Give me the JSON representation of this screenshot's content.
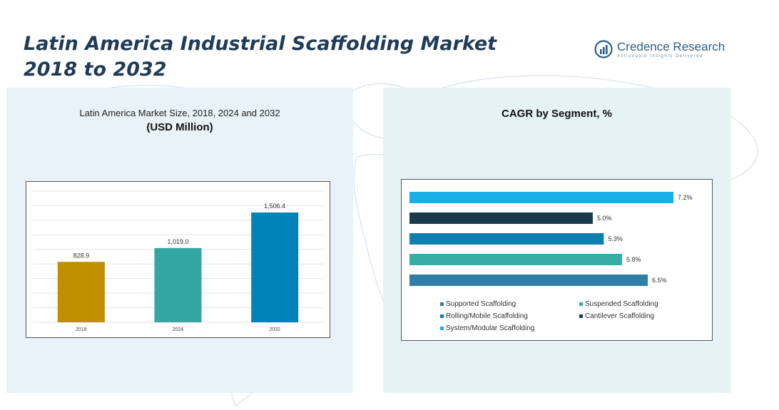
{
  "header": {
    "title_line1": "Latin America Industrial Scaffolding Market",
    "title_line2": "2018 to 2032"
  },
  "logo": {
    "name": "Credence Research",
    "tagline": "Actionable Insights Delivered",
    "icon": "credence-research-logo-icon"
  },
  "left_panel": {
    "title": "Latin America Market Size, 2018, 2024 and 2032",
    "unit": "(USD Million)"
  },
  "right_panel": {
    "title": "CAGR by Segment, %"
  },
  "colors": {
    "title": "#1f3b57",
    "left_panel_bg": "#e8f2f8",
    "right_panel_bg": "#e5f3f4"
  },
  "chart_data": [
    {
      "type": "bar",
      "categories": [
        "2018",
        "2024",
        "2032"
      ],
      "values": [
        828.9,
        1019.0,
        1506.4
      ],
      "value_labels": [
        "828.9",
        "1,019.0",
        "1,506.4"
      ],
      "colors": [
        "#bf8f00",
        "#31a6a2",
        "#0083b8"
      ],
      "title": "Latin America Market Size, 2018, 2024 and 2032",
      "ylabel": "(USD Million)",
      "ylim": [
        0,
        1800
      ],
      "grid": true
    },
    {
      "type": "bar",
      "orientation": "horizontal",
      "title": "CAGR by Segment, %",
      "categories": [
        "System/Modular Scaffolding",
        "Cantilever Scaffolding",
        "Rolling/Mobile Scaffolding",
        "Suspended Scaffolding",
        "Supported Scaffolding"
      ],
      "values": [
        7.2,
        5.0,
        5.3,
        5.8,
        6.5
      ],
      "value_labels": [
        "7.2%",
        "5.0%",
        "5.3%",
        "5.8%",
        "6.5%"
      ],
      "colors": [
        "#1aafe6",
        "#1b3a4b",
        "#0f7fae",
        "#38ada6",
        "#2f7ea6"
      ],
      "xlim": [
        0,
        7.2
      ],
      "legend": {
        "position": "bottom",
        "entries": [
          {
            "label": "Supported Scaffolding",
            "color": "#2f7ea6"
          },
          {
            "label": "Suspended Scaffolding",
            "color": "#38ada6"
          },
          {
            "label": "Rolling/Mobile Scaffolding",
            "color": "#0f7fae"
          },
          {
            "label": "Cantilever Scaffolding",
            "color": "#1b3a4b"
          },
          {
            "label": "System/Modular Scaffolding",
            "color": "#1aafe6"
          }
        ]
      }
    }
  ]
}
